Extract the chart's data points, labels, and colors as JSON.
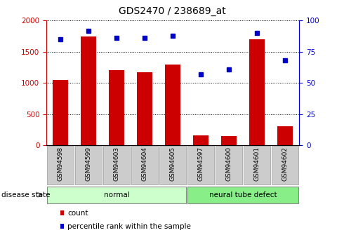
{
  "title": "GDS2470 / 238689_at",
  "categories": [
    "GSM94598",
    "GSM94599",
    "GSM94603",
    "GSM94604",
    "GSM94605",
    "GSM94597",
    "GSM94600",
    "GSM94601",
    "GSM94602"
  ],
  "counts": [
    1050,
    1750,
    1200,
    1175,
    1300,
    155,
    150,
    1700,
    300
  ],
  "percentiles": [
    85,
    92,
    86,
    86,
    88,
    57,
    61,
    90,
    68
  ],
  "bar_color": "#cc0000",
  "dot_color": "#0000cc",
  "groups": [
    {
      "label": "normal",
      "start": 0,
      "end": 4,
      "color": "#ccffcc"
    },
    {
      "label": "neural tube defect",
      "start": 5,
      "end": 8,
      "color": "#88ee88"
    }
  ],
  "disease_state_label": "disease state",
  "left_yaxis": {
    "min": 0,
    "max": 2000,
    "ticks": [
      0,
      500,
      1000,
      1500,
      2000
    ],
    "color": "#cc0000"
  },
  "right_yaxis": {
    "min": 0,
    "max": 100,
    "ticks": [
      0,
      25,
      50,
      75,
      100
    ],
    "color": "#0000cc"
  },
  "legend": [
    {
      "label": "count",
      "color": "#cc0000"
    },
    {
      "label": "percentile rank within the sample",
      "color": "#0000cc"
    }
  ],
  "bg_color": "#ffffff",
  "tick_label_bg": "#cccccc"
}
